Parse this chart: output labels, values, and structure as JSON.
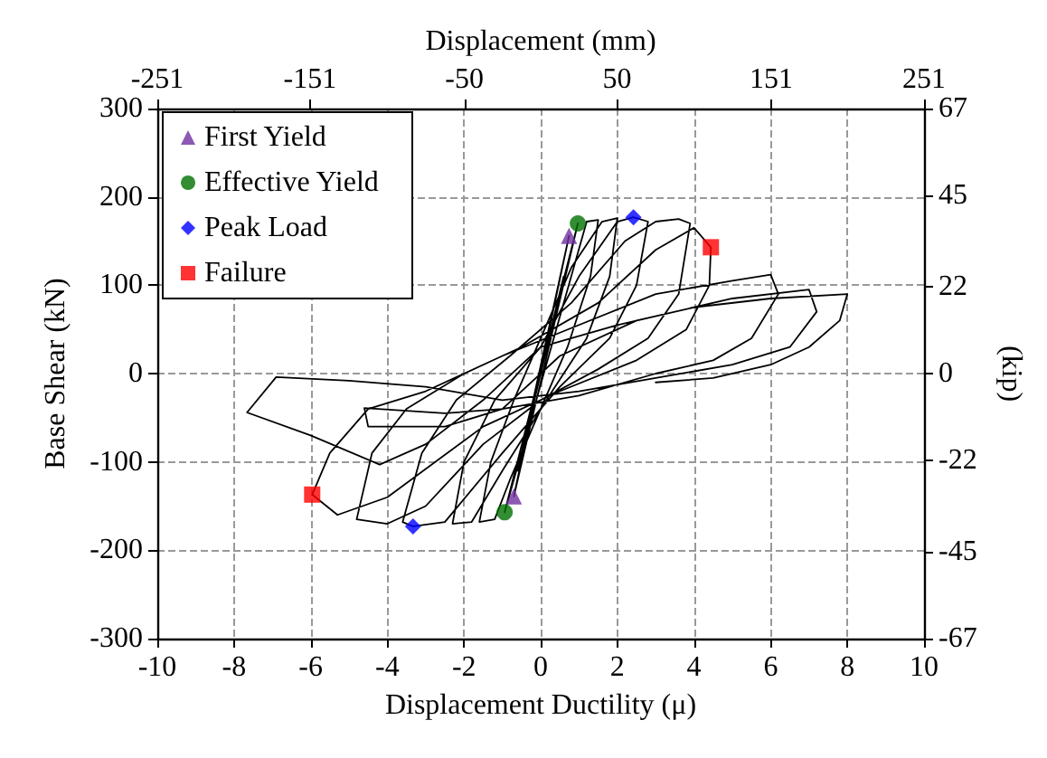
{
  "chart_data": {
    "type": "line",
    "xlabel": "Displacement Ductility (μ)",
    "ylabel": "Base Shear (kN)",
    "x2label": "Displacement (mm)",
    "y2label": "(kip)",
    "xlim": [
      -10,
      10
    ],
    "xticks": [
      -10,
      -8,
      -6,
      -4,
      -2,
      0,
      2,
      4,
      6,
      8,
      10
    ],
    "ylim": [
      -300,
      300
    ],
    "yticks": [
      -300,
      -200,
      -100,
      0,
      100,
      200,
      300
    ],
    "x2lim": [
      -251,
      251
    ],
    "x2ticks": [
      -251,
      -151,
      -50,
      50,
      151,
      251
    ],
    "y2lim": [
      -67,
      67
    ],
    "y2ticks": [
      -67,
      -45,
      -22,
      0,
      22,
      45,
      67
    ],
    "grid": true,
    "legend": "top left",
    "series": [
      {
        "color": "#000000",
        "marker": "none",
        "x": [
          0,
          0.4,
          -0.4,
          0.6,
          -0.6,
          0.74,
          -0.7,
          0.97,
          -0.94,
          1.2,
          1.5,
          1.3,
          0.7,
          0,
          -0.8,
          -1.2,
          -1.6,
          -1.3,
          -0.7,
          0,
          0.8,
          1.6,
          2.0,
          1.8,
          1.2,
          0.3,
          -1.0,
          -1.8,
          -2.3,
          -2.0,
          -1.2,
          0,
          1.0,
          2.0,
          2.42,
          2.8,
          2.5,
          1.8,
          0.5,
          -1.0,
          -2.5,
          -3.33,
          -3.6,
          -3.1,
          -2.2,
          -0.8,
          0.8,
          2.2,
          3.0,
          3.6,
          3.9,
          3.6,
          2.8,
          1.5,
          0,
          -1.5,
          -3.0,
          -4.0,
          -4.8,
          -4.4,
          -3.5,
          -2,
          -0.5,
          1.5,
          3.0,
          4.0,
          4.44,
          4.4,
          3.8,
          2.5,
          0.5,
          -1.5,
          -4.0,
          -5.3,
          -5.96,
          -5.5,
          -4.5,
          -3,
          -1,
          1,
          3,
          5,
          6,
          6.2,
          5.5,
          4.5,
          3,
          1,
          -1,
          -2.5,
          -4.6,
          -4.5,
          -2.5,
          -1,
          0.5,
          2.5,
          5,
          7,
          7.2,
          6.5,
          5,
          3,
          1,
          -1,
          -3,
          -5,
          -6.9,
          -7.66,
          -6,
          -4.2,
          -3,
          -1.5,
          0,
          2,
          4,
          6,
          8,
          7.8,
          7,
          6,
          4.5,
          3
        ],
        "values": [
          0,
          70,
          -70,
          110,
          -110,
          156,
          -139,
          170,
          -157,
          172,
          174,
          110,
          30,
          -40,
          -120,
          -165,
          -168,
          -100,
          -30,
          40,
          120,
          172,
          176,
          110,
          40,
          -20,
          -110,
          -168,
          -170,
          -100,
          -30,
          30,
          110,
          172,
          177,
          172,
          100,
          40,
          -15,
          -90,
          -168,
          -173,
          -168,
          -90,
          -30,
          20,
          80,
          150,
          172,
          175,
          170,
          90,
          40,
          5,
          -30,
          -80,
          -150,
          -170,
          -165,
          -90,
          -40,
          0,
          30,
          80,
          140,
          165,
          143,
          100,
          50,
          15,
          -20,
          -60,
          -140,
          -160,
          -137,
          -90,
          -40,
          -20,
          20,
          55,
          90,
          105,
          112,
          90,
          40,
          15,
          0,
          -25,
          -40,
          -45,
          -39,
          -60,
          -60,
          -40,
          20,
          60,
          85,
          95,
          70,
          30,
          10,
          -5,
          -20,
          -30,
          -15,
          -8,
          -4,
          -44,
          -70,
          -103,
          -80,
          -30,
          30,
          55,
          75,
          85,
          90,
          60,
          30,
          10,
          -5,
          -10
        ]
      },
      {
        "type": "scatter",
        "name": "First Yield",
        "color": "#7030a0",
        "marker": "triangle",
        "x": [
          0.74,
          -0.7
        ],
        "values": [
          156,
          -139
        ]
      },
      {
        "type": "scatter",
        "name": "Effective Yield",
        "color": "#007000",
        "marker": "circle",
        "x": [
          0.97,
          -0.94
        ],
        "values": [
          170,
          -157
        ]
      },
      {
        "type": "scatter",
        "name": "Peak Load",
        "color": "#0000ff",
        "marker": "diamond",
        "x": [
          2.42,
          -3.33
        ],
        "values": [
          177,
          -173
        ]
      },
      {
        "type": "scatter",
        "name": "Failure",
        "color": "#ff0000",
        "marker": "square",
        "x": [
          4.44,
          -5.96
        ],
        "values": [
          143,
          -137
        ]
      }
    ]
  }
}
